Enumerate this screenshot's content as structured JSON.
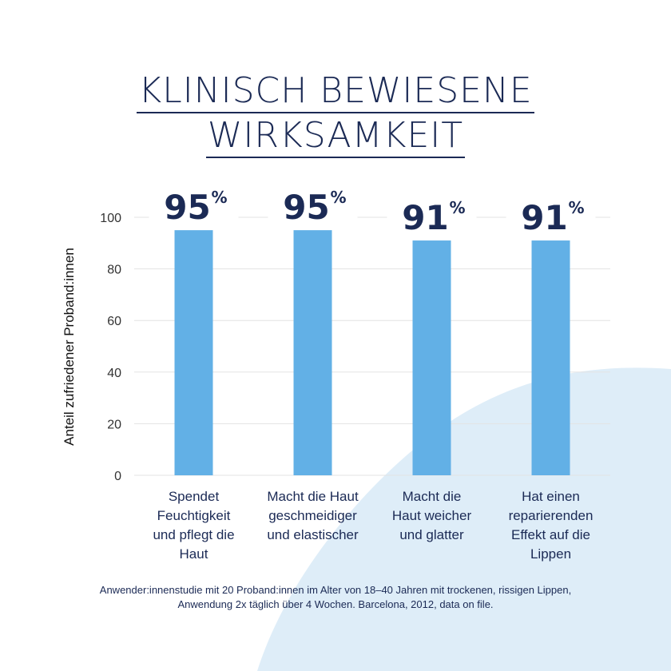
{
  "title_lines": [
    "KLINISCH BEWIESENE",
    "WIRKSAMKEIT"
  ],
  "chart_data": {
    "type": "bar",
    "ylabel": "Anteil zufriedener Proband:innen",
    "ylim": [
      0,
      100
    ],
    "yticks": [
      0,
      20,
      40,
      60,
      80,
      100
    ],
    "grid": true,
    "categories": [
      [
        "Spendet",
        "Feuchtigkeit",
        "und pflegt die",
        "Haut"
      ],
      [
        "Macht die Haut",
        "geschmeidiger",
        "und elastischer"
      ],
      [
        "Macht die",
        "Haut weicher",
        "und glatter"
      ],
      [
        "Hat einen",
        "reparierenden",
        "Effekt auf die",
        "Lippen"
      ]
    ],
    "values": [
      95,
      95,
      91,
      91
    ],
    "data_labels": [
      "95",
      "95",
      "91",
      "91"
    ],
    "data_label_unit": "%",
    "bar_color": "#62b0e6"
  },
  "footnote": "Anwender:innenstudie mit 20 Proband:innen im Alter von 18–40 Jahren mit trockenen, rissigen Lippen, Anwendung 2x täglich über 4 Wochen. Barcelona, 2012, data on file.",
  "colors": {
    "text": "#1b2a55",
    "blob": "#deedf8",
    "grid": "#e3e3e3"
  }
}
